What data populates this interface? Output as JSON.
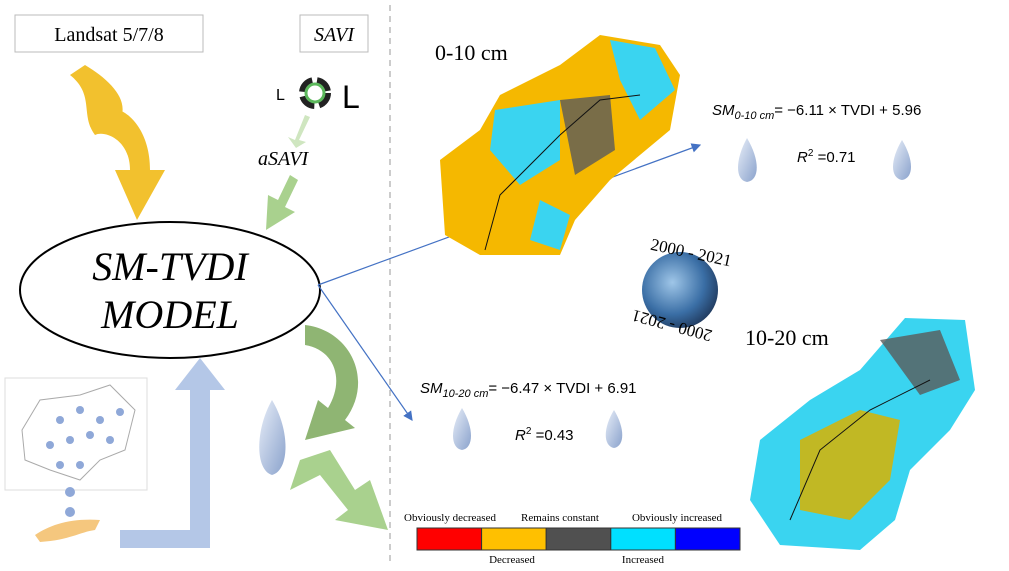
{
  "inputs": {
    "landsat": "Landsat 5/7/8",
    "savi": "SAVI",
    "l_small": "L",
    "l_large": "L",
    "asavi": "aSAVI"
  },
  "model": {
    "line1": "SM-TVDI",
    "line2": "MODEL"
  },
  "depths": [
    "0-10 cm",
    "10-20 cm"
  ],
  "period": [
    "2000 - 2021",
    "2000 - 2021"
  ],
  "equations": [
    {
      "sm": "SM",
      "sub": "0-10 cm",
      "rhs": "= −6.11 × TVDI + 5.96",
      "r": "R",
      "sup": "2",
      "r_value": " =0.71"
    },
    {
      "sm": "SM",
      "sub": "10-20 cm",
      "rhs": "= −6.47 × TVDI + 6.91",
      "r": "R",
      "sup": "2",
      "r_value": " =0.43"
    }
  ],
  "legend": [
    {
      "label": "Obviously decreased",
      "color": "#ff0000"
    },
    {
      "label": "Decreased",
      "color": "#ffc000"
    },
    {
      "label": "Remains constant",
      "color": "#505050"
    },
    {
      "label": "Increased",
      "color": "#00e0ff"
    },
    {
      "label": "Obviously increased",
      "color": "#0000ff"
    }
  ]
}
